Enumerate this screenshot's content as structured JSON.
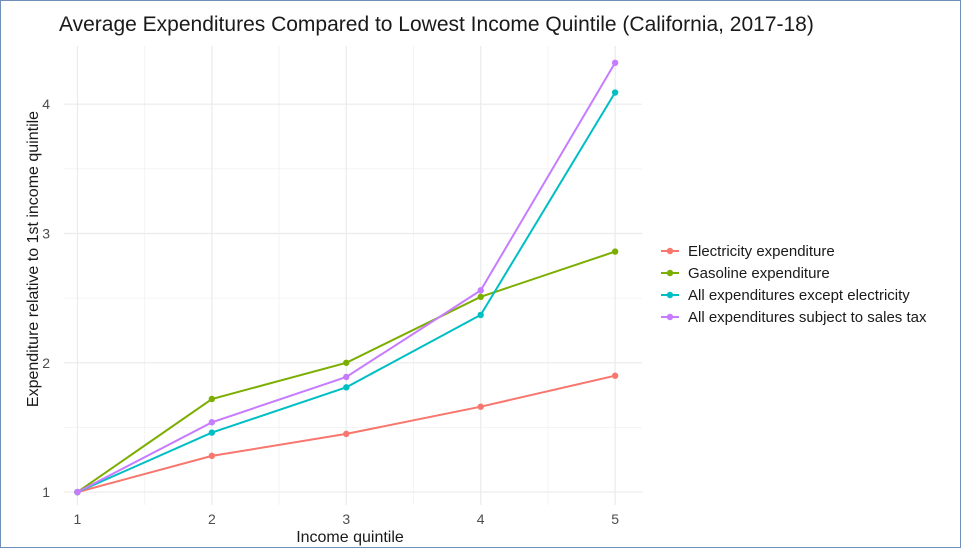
{
  "chart_data": {
    "type": "line",
    "title": "Average Expenditures Compared to Lowest Income Quintile (California, 2017-18)",
    "xlabel": "Income quintile",
    "ylabel": "Expenditure relative to 1st income quintile",
    "x": [
      1,
      2,
      3,
      4,
      5
    ],
    "xticks": [
      "1",
      "2",
      "3",
      "4",
      "5"
    ],
    "yticks": [
      "1",
      "2",
      "3",
      "4"
    ],
    "xlim": [
      0.9,
      5.2
    ],
    "ylim": [
      0.9,
      4.45
    ],
    "grid": true,
    "legend_position": "right",
    "series": [
      {
        "name": "Electricity expenditure",
        "color": "#F8766D",
        "values": [
          1.0,
          1.28,
          1.45,
          1.66,
          1.9
        ]
      },
      {
        "name": "Gasoline expenditure",
        "color": "#7CAE00",
        "values": [
          1.0,
          1.72,
          2.0,
          2.51,
          2.86
        ]
      },
      {
        "name": "All expenditures except electricity",
        "color": "#00BFC4",
        "values": [
          1.0,
          1.46,
          1.81,
          2.37,
          4.09
        ]
      },
      {
        "name": "All expenditures subject to sales tax",
        "color": "#C77CFF",
        "values": [
          1.0,
          1.54,
          1.89,
          2.56,
          4.32
        ]
      }
    ]
  }
}
